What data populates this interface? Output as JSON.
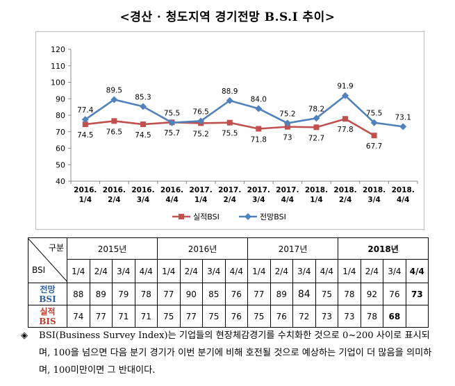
{
  "title": "<경산 · 청도지역 경기전망 B.S.I 추이>",
  "chart_data": {
    "type": "line",
    "categories": [
      "2016.\n1/4",
      "2016.\n2/4",
      "2016.\n3/4",
      "2016.\n4/4",
      "2017.\n1/4",
      "2017.\n2/4",
      "2017.\n3/4",
      "2017.\n4/4",
      "2018.\n1/4",
      "2018.\n2/4",
      "2018.\n3/4",
      "2018.\n4/4"
    ],
    "ylim": [
      40,
      120
    ],
    "yticks": [
      40,
      50,
      60,
      70,
      80,
      90,
      100,
      110,
      120
    ],
    "series": [
      {
        "name": "실적BSI",
        "color": "#c0504d",
        "marker": "square",
        "values": [
          74.5,
          76.5,
          74.5,
          75.7,
          75.2,
          75.5,
          71.8,
          73,
          72.7,
          77.8,
          67.7,
          null
        ],
        "labels": [
          "74.5",
          "76.5",
          "74.5",
          "75.7",
          "75.2",
          "75.5",
          "71.8",
          "73",
          "72.7",
          "77.8",
          "67.7",
          ""
        ]
      },
      {
        "name": "전망BSI",
        "color": "#4f81bd",
        "marker": "diamond",
        "values": [
          77.4,
          89.5,
          85.3,
          75.5,
          76.5,
          88.9,
          84.0,
          75.2,
          78.2,
          91.9,
          75.5,
          73.1
        ],
        "labels": [
          "77.4",
          "89.5",
          "85.3",
          "75.5",
          "76.5",
          "88.9",
          "84.0",
          "75.2",
          "78.2",
          "91.9",
          "75.5",
          "73.1"
        ]
      }
    ],
    "legend_position": "bottom",
    "grid": false
  },
  "table": {
    "corner_top": "구분",
    "corner_bottom": "BSI",
    "years": [
      {
        "label": "2015년",
        "bold": false
      },
      {
        "label": "2016년",
        "bold": false
      },
      {
        "label": "2017년",
        "bold": false
      },
      {
        "label": "2018년",
        "bold": true
      }
    ],
    "quarters": [
      "1/4",
      "2/4",
      "3/4",
      "4/4",
      "1/4",
      "2/4",
      "3/4",
      "4/4",
      "1/4",
      "2/4",
      "3/4",
      "4/4",
      "1/4",
      "2/4",
      "3/4",
      "4/4"
    ],
    "rows": [
      {
        "head_1": "전망",
        "head_2": "BSI",
        "style": "blue",
        "values": [
          "88",
          "89",
          "79",
          "78",
          "77",
          "90",
          "85",
          "76",
          "77",
          "89",
          "84",
          "75",
          "78",
          "92",
          "76",
          "73"
        ]
      },
      {
        "head_1": "실적",
        "head_2": "BIS",
        "style": "red",
        "values": [
          "74",
          "77",
          "71",
          "71",
          "75",
          "77",
          "75",
          "76",
          "75",
          "76",
          "72",
          "73",
          "73",
          "78",
          "68",
          ""
        ]
      }
    ]
  },
  "note": {
    "bullet": "◈",
    "text": "BSI(Business Survey Index)는 기업들의 현장체감경기를 수치화한 것으로 0~200 사이로 표시되며, 100을 넘으면 다음 분기 경기가 이번 분기에 비해 호전될 것으로 예상하는 기업이 더 많음을 의미하며, 100미만이면 그 반대이다."
  }
}
